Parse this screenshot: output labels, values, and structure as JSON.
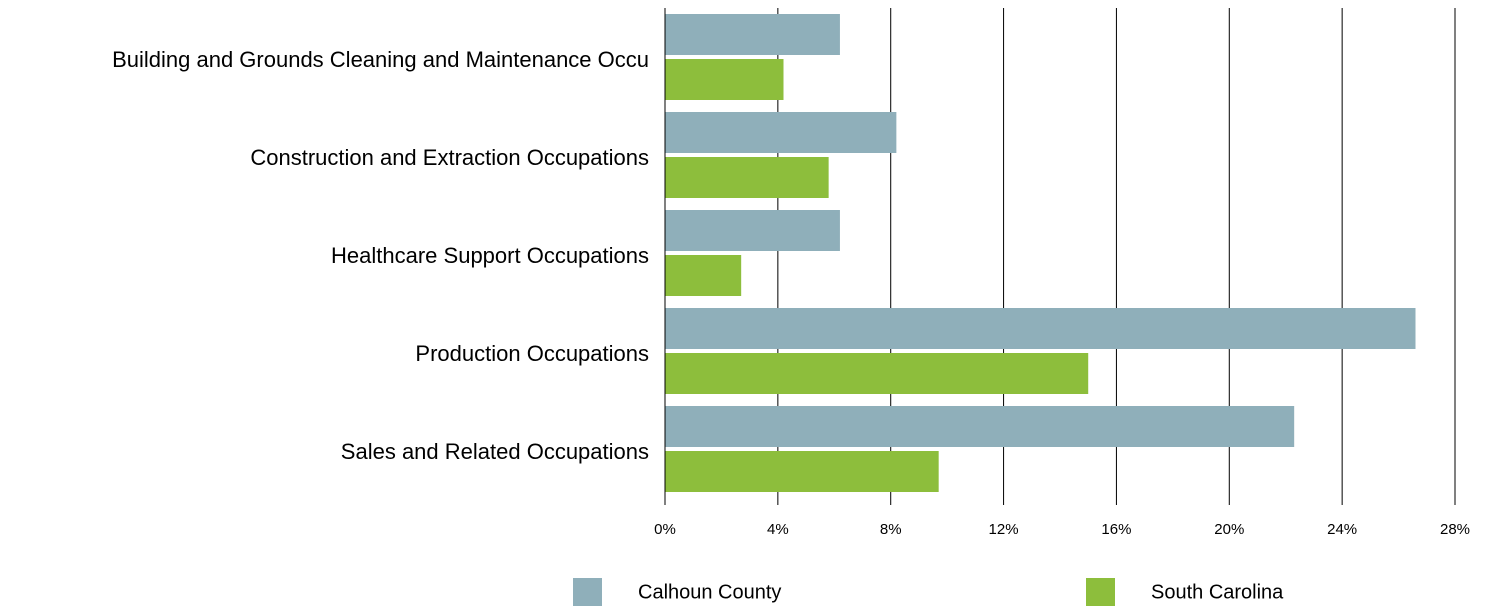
{
  "chart_data": {
    "type": "bar",
    "orientation": "horizontal",
    "categories": [
      "Building and Grounds Cleaning and Maintenance Occu",
      "Construction and Extraction Occupations",
      "Healthcare Support Occupations",
      "Production Occupations",
      "Sales and Related Occupations"
    ],
    "series": [
      {
        "name": "Calhoun County",
        "color": "#8fafba",
        "values": [
          6.2,
          8.2,
          6.2,
          26.6,
          22.3
        ]
      },
      {
        "name": "South Carolina",
        "color": "#8dbe3c",
        "values": [
          4.2,
          5.8,
          2.7,
          15.0,
          9.7
        ]
      }
    ],
    "xlim": [
      0,
      28
    ],
    "xticks": [
      {
        "value": 0,
        "label": "0%"
      },
      {
        "value": 4,
        "label": "4%"
      },
      {
        "value": 8,
        "label": "8%"
      },
      {
        "value": 12,
        "label": "12%"
      },
      {
        "value": 16,
        "label": "16%"
      },
      {
        "value": 20,
        "label": "20%"
      },
      {
        "value": 24,
        "label": "24%"
      },
      {
        "value": 28,
        "label": "28%"
      }
    ],
    "grid": true,
    "legend": "bottom"
  }
}
